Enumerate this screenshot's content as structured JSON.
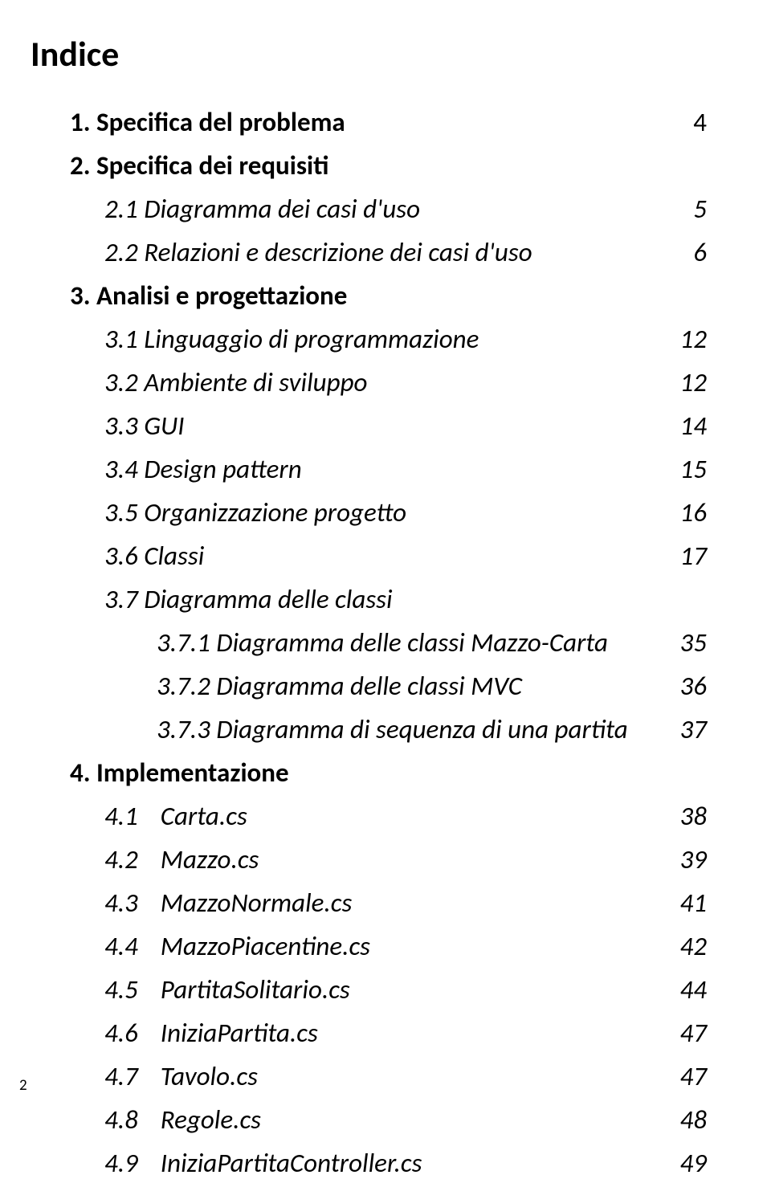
{
  "title": "Indice",
  "entries": [
    {
      "level": 1,
      "label": "1. Specifica del problema",
      "page": "4"
    },
    {
      "level": 1,
      "label": "2. Specifica dei requisiti",
      "page": ""
    },
    {
      "level": 2,
      "label": "2.1 Diagramma dei casi d'uso",
      "page": "5"
    },
    {
      "level": 2,
      "label": "2.2 Relazioni e descrizione dei casi d'uso",
      "page": "6"
    },
    {
      "level": 1,
      "label": "3. Analisi e progettazione",
      "page": ""
    },
    {
      "level": 2,
      "label": "3.1 Linguaggio di programmazione",
      "page": "12"
    },
    {
      "level": 2,
      "label": "3.2 Ambiente di sviluppo",
      "page": "12"
    },
    {
      "level": 2,
      "label": "3.3 GUI",
      "page": "14"
    },
    {
      "level": 2,
      "label": "3.4 Design pattern",
      "page": "15"
    },
    {
      "level": 2,
      "label": "3.5 Organizzazione progetto",
      "page": "16"
    },
    {
      "level": 2,
      "label": "3.6 Classi",
      "page": "17"
    },
    {
      "level": 2,
      "label": "3.7 Diagramma delle classi",
      "page": ""
    },
    {
      "level": 3,
      "label": "3.7.1 Diagramma delle classi Mazzo-Carta",
      "page": "35"
    },
    {
      "level": 3,
      "label": "3.7.2 Diagramma delle classi MVC",
      "page": "36"
    },
    {
      "level": 3,
      "label": "3.7.3 Diagramma di sequenza di una partita",
      "page": "37"
    },
    {
      "level": 1,
      "label": "4. Implementazione",
      "page": ""
    },
    {
      "level": "2n",
      "num": "4.1",
      "label": "Carta.cs",
      "page": "38"
    },
    {
      "level": "2n",
      "num": "4.2",
      "label": "Mazzo.cs",
      "page": "39"
    },
    {
      "level": "2n",
      "num": "4.3",
      "label": "MazzoNormale.cs",
      "page": "41"
    },
    {
      "level": "2n",
      "num": "4.4",
      "label": "MazzoPiacentine.cs",
      "page": "42"
    },
    {
      "level": "2n",
      "num": "4.5",
      "label": "PartitaSolitario.cs",
      "page": "44"
    },
    {
      "level": "2n",
      "num": "4.6",
      "label": "IniziaPartita.cs",
      "page": "47"
    },
    {
      "level": "2n",
      "num": "4.7",
      "label": "Tavolo.cs",
      "page": "47"
    },
    {
      "level": "2n",
      "num": "4.8",
      "label": "Regole.cs",
      "page": "48"
    },
    {
      "level": "2n",
      "num": "4.9",
      "label": "IniziaPartitaController.cs",
      "page": "49"
    }
  ],
  "footerPage": "2"
}
